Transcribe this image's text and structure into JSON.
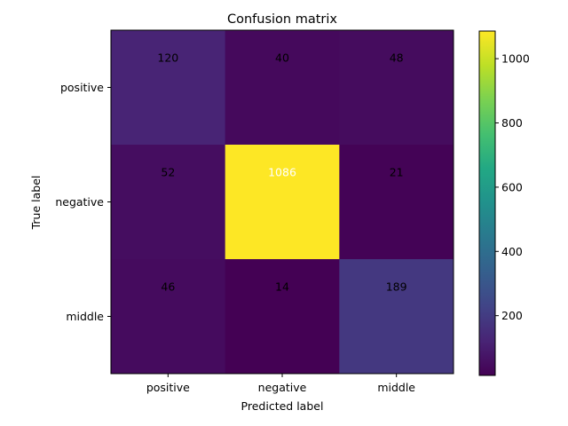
{
  "chart_data": {
    "type": "heatmap",
    "title": "Confusion matrix",
    "xlabel": "Predicted label",
    "ylabel": "True label",
    "x_categories": [
      "positive",
      "negative",
      "middle"
    ],
    "y_categories": [
      "positive",
      "negative",
      "middle"
    ],
    "values": [
      [
        120,
        40,
        48
      ],
      [
        52,
        1086,
        21
      ],
      [
        46,
        14,
        189
      ]
    ],
    "colormap": "viridis",
    "colorbar": {
      "min": 14,
      "max": 1086,
      "ticks": [
        200,
        400,
        600,
        800,
        1000
      ]
    },
    "light_text_color": "#ffffff",
    "dark_text_color": "#000000"
  }
}
